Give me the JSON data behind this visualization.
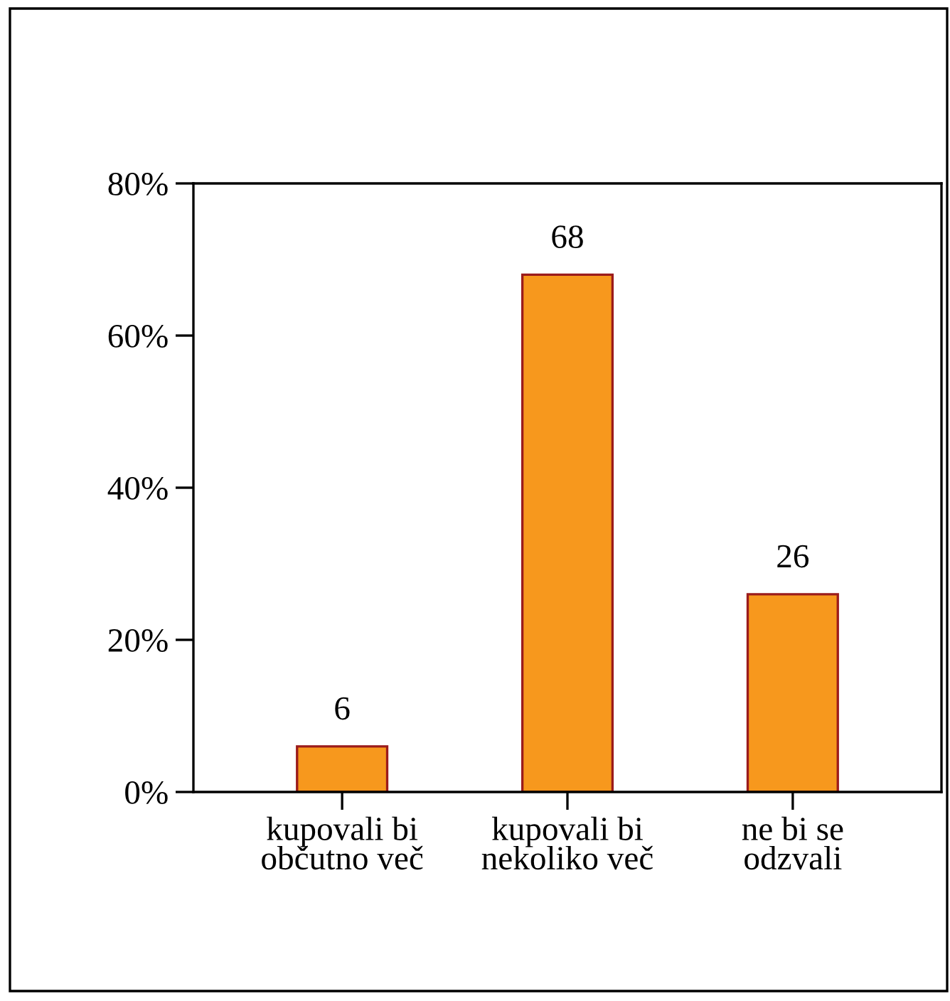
{
  "chart_data": {
    "type": "bar",
    "categories": [
      "kupovali bi\nobčutno več",
      "kupovali bi\nnekoliko več",
      "ne bi se\nodzvali"
    ],
    "values": [
      6,
      68,
      26
    ],
    "color": "#f7981d",
    "ylim": [
      0,
      80
    ],
    "yticks": [
      {
        "value": 0,
        "label": "0%"
      },
      {
        "value": 20,
        "label": "20%"
      },
      {
        "value": 40,
        "label": "40%"
      },
      {
        "value": 60,
        "label": "60%"
      },
      {
        "value": 80,
        "label": "80%"
      }
    ],
    "data_labels": true
  }
}
